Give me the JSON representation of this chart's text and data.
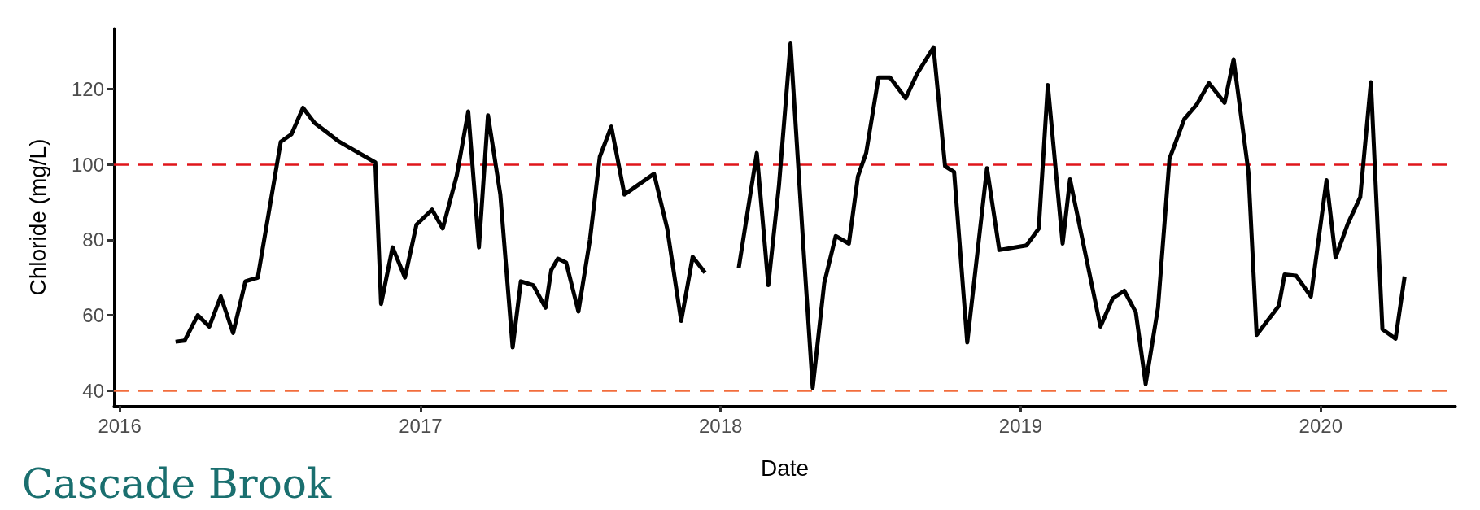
{
  "chart_data": {
    "type": "line",
    "title": "Cascade Brook",
    "xlabel": "Date",
    "ylabel": "Chloride (mg/L)",
    "x": [
      "2016-03-09",
      "2016-03-20",
      "2016-04-05",
      "2016-04-19",
      "2016-05-03",
      "2016-05-18",
      "2016-06-02",
      "2016-06-17",
      "2016-07-15",
      "2016-07-28",
      "2016-08-11",
      "2016-08-25",
      "2016-09-06",
      "2016-09-24",
      "2016-11-07",
      "2016-11-14",
      "2016-11-28",
      "2016-12-13",
      "2016-12-27",
      "2017-01-15",
      "2017-01-28",
      "2017-02-14",
      "2017-02-28",
      "2017-03-13",
      "2017-03-24",
      "2017-04-08",
      "2017-04-23",
      "2017-05-03",
      "2017-05-18",
      "2017-06-02",
      "2017-06-09",
      "2017-06-17",
      "2017-06-27",
      "2017-07-12",
      "2017-07-26",
      "2017-08-07",
      "2017-08-21",
      "2017-09-06",
      "2017-10-12",
      "2017-10-28",
      "2017-11-14",
      "2017-11-28",
      "2017-12-13",
      "2018-01-05",
      "2018-01-23",
      "2018-02-14",
      "2018-02-28",
      "2018-03-13",
      "2018-03-27",
      "2018-04-12",
      "2018-04-23",
      "2018-05-07",
      "2018-05-21",
      "2018-06-06",
      "2018-06-17",
      "2018-06-27",
      "2018-07-12",
      "2018-07-26",
      "2018-08-14",
      "2018-08-28",
      "2018-09-17",
      "2018-10-01",
      "2018-10-12",
      "2018-10-28",
      "2018-11-21",
      "2018-12-06",
      "2019-01-08",
      "2019-01-23",
      "2019-02-03",
      "2019-02-21",
      "2019-03-02",
      "2019-04-08",
      "2019-04-23",
      "2019-05-07",
      "2019-05-21",
      "2019-06-02",
      "2019-06-17",
      "2019-07-01",
      "2019-07-19",
      "2019-08-03",
      "2019-08-18",
      "2019-09-06",
      "2019-09-17",
      "2019-10-05",
      "2019-10-15",
      "2019-11-11",
      "2019-11-18",
      "2019-12-02",
      "2019-12-20",
      "2020-01-08",
      "2020-01-19",
      "2020-02-03",
      "2020-02-18",
      "2020-03-02",
      "2020-03-16",
      "2020-04-01",
      "2020-04-12"
    ],
    "series": [
      {
        "color": "#000000",
        "values": [
          53,
          53.3,
          60,
          57,
          65,
          55.3,
          69,
          70,
          106,
          108,
          115,
          111,
          109,
          106,
          100.5,
          63,
          78,
          70,
          84,
          88,
          83,
          97,
          114,
          78,
          113,
          92,
          51.5,
          69,
          68,
          62,
          72,
          75,
          74,
          61,
          80,
          102,
          110,
          92,
          97.5,
          83,
          58.5,
          75.5,
          71.3,
          null,
          72.5,
          103,
          68,
          94.5,
          132,
          77,
          40.8,
          68.5,
          81,
          79,
          96.8,
          103,
          123,
          123,
          117.5,
          124,
          131,
          99.5,
          98,
          52.8,
          99,
          77.3,
          78.5,
          83,
          121,
          79,
          96,
          57,
          64.5,
          66.5,
          60.8,
          41.8,
          62,
          101.5,
          112,
          115.8,
          121.5,
          116.3,
          127.8,
          98,
          54.8,
          62.5,
          70.8,
          70.5,
          65,
          95.8,
          75.3,
          84.3,
          91.3,
          121.8,
          56.3,
          53.8,
          70.3
        ]
      }
    ],
    "xlim": [
      "2015-12-25",
      "2020-06-13"
    ],
    "xticks": [
      {
        "value": "2016",
        "label": "2016"
      },
      {
        "value": "2017",
        "label": "2017"
      },
      {
        "value": "2018",
        "label": "2018"
      },
      {
        "value": "2019",
        "label": "2019"
      },
      {
        "value": "2020",
        "label": "2020"
      }
    ],
    "ylim": [
      36,
      136
    ],
    "yticks": [
      40,
      60,
      80,
      100,
      120
    ],
    "ref_lines": [
      {
        "axis": "y",
        "value": 100,
        "color": "#e0161b",
        "line_style": "dashed"
      },
      {
        "axis": "y",
        "value": 40,
        "color": "#f26d3d",
        "line_style": "dashed"
      }
    ],
    "grid": false,
    "marker": "none",
    "line_style": "solid"
  }
}
